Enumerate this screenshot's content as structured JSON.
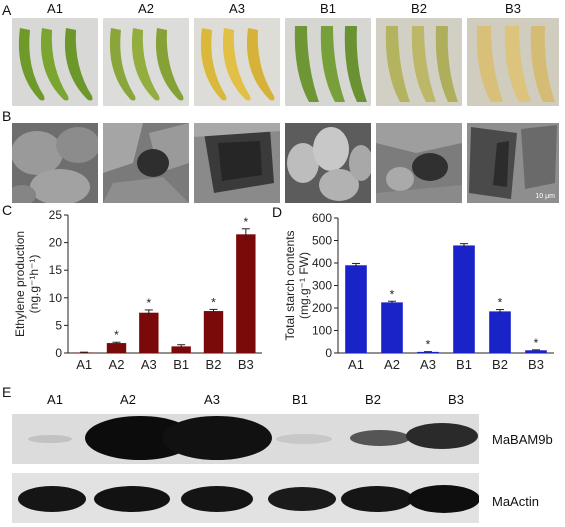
{
  "panels": {
    "A": {
      "label": "A",
      "columns": [
        "A1",
        "A2",
        "A3",
        "B1",
        "B2",
        "B3"
      ]
    },
    "B": {
      "label": "B",
      "scale_bar": "10 μm"
    },
    "C": {
      "label": "C"
    },
    "D": {
      "label": "D"
    },
    "E": {
      "label": "E",
      "columns": [
        "A1",
        "A2",
        "A3",
        "B1",
        "B2",
        "B3"
      ],
      "bands": [
        "MaBAM9b",
        "MaActin"
      ]
    }
  },
  "chart_data": [
    {
      "type": "bar",
      "panel": "C",
      "categories": [
        "A1",
        "A2",
        "A3",
        "B1",
        "B2",
        "B3"
      ],
      "values": [
        0.1,
        1.8,
        7.3,
        1.2,
        7.6,
        21.5
      ],
      "errors": [
        0.05,
        0.15,
        0.5,
        0.3,
        0.3,
        1.0
      ],
      "significance": [
        "",
        "*",
        "*",
        "",
        "*",
        "*"
      ],
      "ylabel_line1": "Ethylene production",
      "ylabel_line2": "(ng.g⁻¹h⁻¹)",
      "yticks": [
        0,
        5,
        10,
        15,
        20,
        25
      ],
      "ylim": [
        0,
        25
      ],
      "color": "#7a0a0a"
    },
    {
      "type": "bar",
      "panel": "D",
      "categories": [
        "A1",
        "A2",
        "A3",
        "B1",
        "B2",
        "B3"
      ],
      "values": [
        390,
        225,
        5,
        478,
        185,
        12
      ],
      "errors": [
        8,
        5,
        1,
        8,
        8,
        2
      ],
      "significance": [
        "",
        "*",
        "*",
        "",
        "*",
        "*"
      ],
      "ylabel_line1": "Total starch contents",
      "ylabel_line2": "(mg.g⁻¹ FW)",
      "yticks": [
        0,
        100,
        200,
        300,
        400,
        500,
        600
      ],
      "ylim": [
        0,
        600
      ],
      "color": "#1a23c8"
    }
  ]
}
